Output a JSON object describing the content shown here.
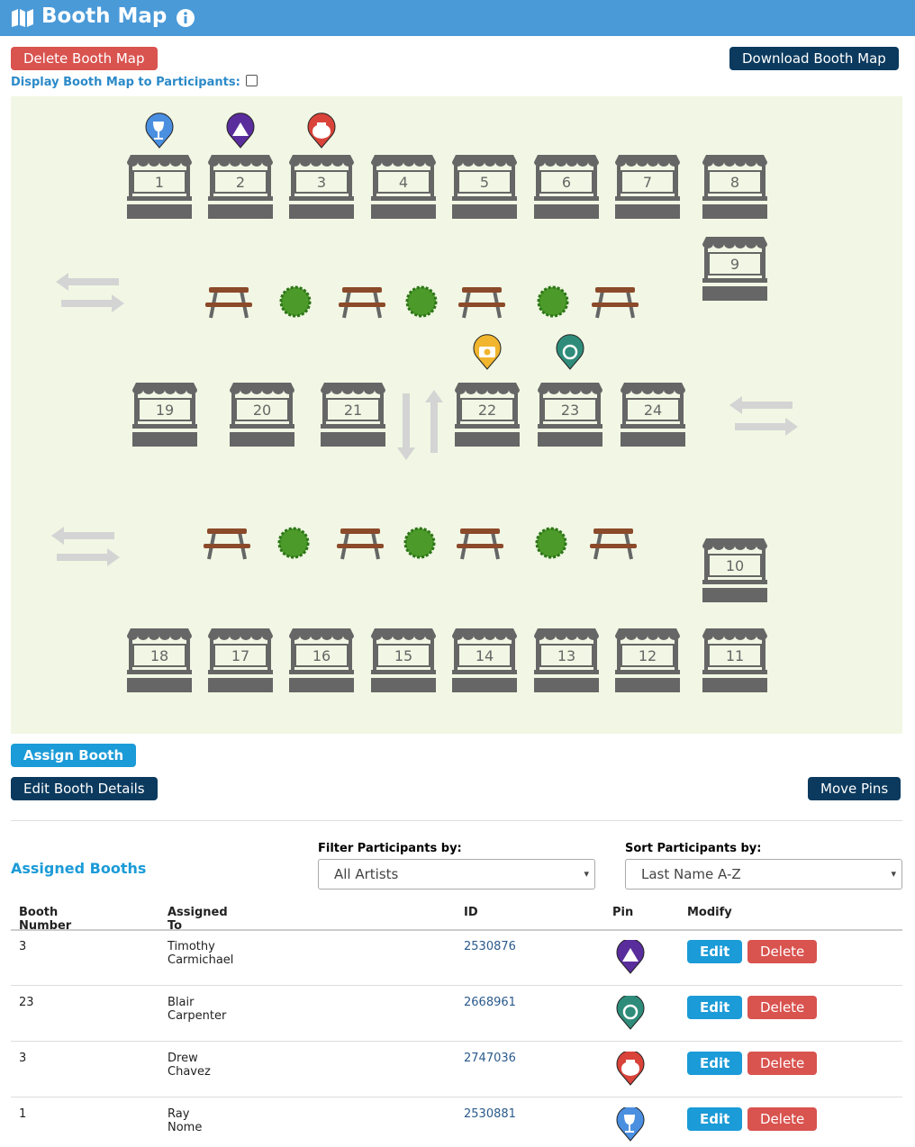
{
  "header": {
    "title": "Booth Map"
  },
  "actions": {
    "delete_map": "Delete Booth Map",
    "download_map": "Download Booth Map",
    "display_label": "Display Booth Map to Participants:",
    "assign": "Assign Booth",
    "edit_details": "Edit Booth Details",
    "move_pins": "Move Pins"
  },
  "map": {
    "booths": [
      "1",
      "2",
      "3",
      "4",
      "5",
      "6",
      "7",
      "8",
      "9",
      "10",
      "11",
      "12",
      "13",
      "14",
      "15",
      "16",
      "17",
      "18",
      "19",
      "20",
      "21",
      "22",
      "23",
      "24"
    ]
  },
  "assigned": {
    "title": "Assigned Booths",
    "filter_label": "Filter Participants by:",
    "filter_value": "All Artists",
    "sort_label": "Sort Participants by:",
    "sort_value": "Last Name A-Z",
    "table": {
      "columns": [
        "Booth Number",
        "Assigned To",
        "ID",
        "Pin",
        "Modify"
      ],
      "rows": [
        [
          "3",
          "Timothy Carmichael",
          "2530876"
        ],
        [
          "23",
          "Blair Carpenter",
          "2668961"
        ],
        [
          "3",
          "Drew Chavez",
          "2747036"
        ],
        [
          "1",
          "Ray Nome",
          "2530881"
        ]
      ],
      "edit": "Edit",
      "delete": "Delete"
    }
  }
}
